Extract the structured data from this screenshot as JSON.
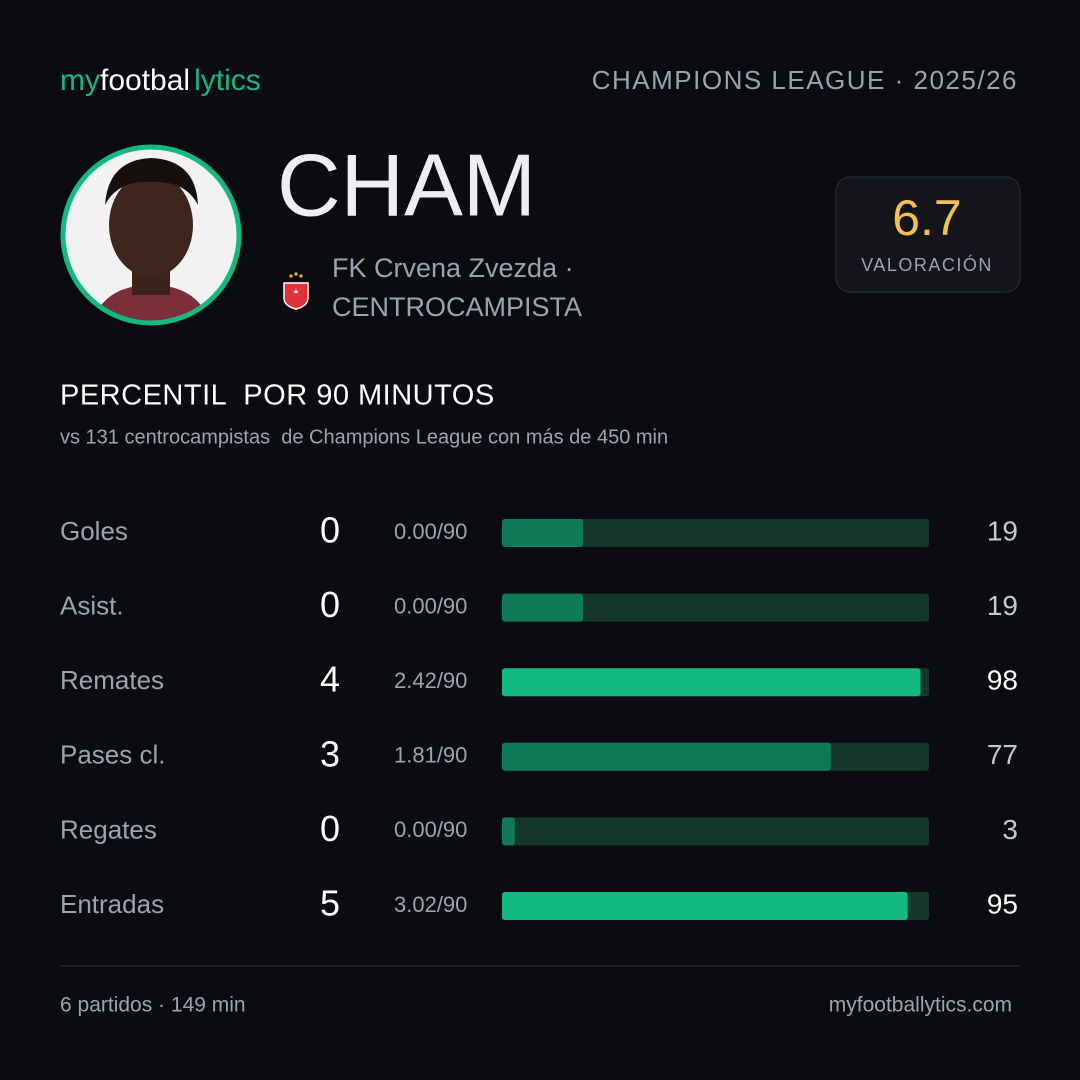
{
  "header": {
    "logo": [
      "my",
      "footbal",
      "lytics"
    ],
    "competition": "CHAMPIONS LEAGUE · 2025/26"
  },
  "player": {
    "name": "CHAM",
    "team": "FK Crvena Zvezda ·",
    "position": "CENTROCAMPISTA",
    "rating": {
      "value": "6.7",
      "label": "VALORACIÓN"
    }
  },
  "section": {
    "title": "PERCENTIL  POR 90 MINUTOS",
    "subtitle": "vs 131 centrocampistas  de Champions League con más de 450 min"
  },
  "stats": {
    "xlim": [
      0,
      100
    ],
    "track_color": "#17362b",
    "rows": [
      {
        "label": "Goles",
        "count": "0",
        "per90": "0.00/90",
        "percentile": 19,
        "color": "#0e7a57",
        "text_color": "#c4c8cf"
      },
      {
        "label": "Asist.",
        "count": "0",
        "per90": "0.00/90",
        "percentile": 19,
        "color": "#0e7a57",
        "text_color": "#c4c8cf"
      },
      {
        "label": "Remates",
        "count": "4",
        "per90": "2.42/90",
        "percentile": 98,
        "color": "#12b981",
        "text_color": "#ffffff"
      },
      {
        "label": "Pases cl.",
        "count": "3",
        "per90": "1.81/90",
        "percentile": 77,
        "color": "#0e7a57",
        "text_color": "#c4c8cf"
      },
      {
        "label": "Regates",
        "count": "0",
        "per90": "0.00/90",
        "percentile": 3,
        "color": "#0e7a57",
        "text_color": "#c4c8cf"
      },
      {
        "label": "Entradas",
        "count": "5",
        "per90": "3.02/90",
        "percentile": 95,
        "color": "#12b981",
        "text_color": "#ffffff"
      }
    ]
  },
  "footer": {
    "summary": "6 partidos · 149 min",
    "site": "myfootballytics.com"
  }
}
